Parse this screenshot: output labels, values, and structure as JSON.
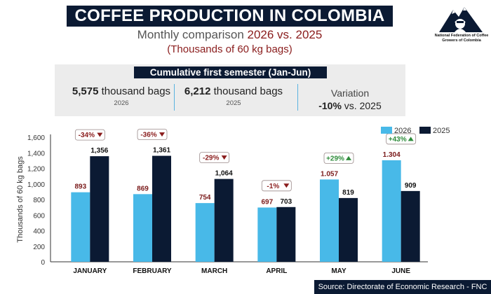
{
  "header": {
    "title": "COFFEE PRODUCTION IN COLOMBIA",
    "subtitle_prefix": "Monthly comparison ",
    "subtitle_highlight": "2026 vs. 2025",
    "subtitle2": "(Thousands of 60 kg bags)"
  },
  "logo": {
    "text": "National Federation of Coffee Growers of Colombia"
  },
  "summary": {
    "title": "Cumulative first semester (Jan-Jun)",
    "stat_2026_value": "5,575",
    "stat_2026_unit": " thousand bags",
    "stat_2026_year": "2026",
    "stat_2025_value": "6,212",
    "stat_2025_unit": " thousand bags",
    "stat_2025_year": "2025",
    "variation_label": "Variation",
    "variation_value": "-10%",
    "variation_suffix": " vs. 2025"
  },
  "source": "Source: Directorate of Economic Research - FNC",
  "colors": {
    "series_2026": "#48b9e8",
    "series_2025": "#0b1a33",
    "negative": "#8a1c1c",
    "positive": "#2e8b3a"
  },
  "chart_data": {
    "type": "bar",
    "ylabel": "Thousands of 60 kg bags",
    "ylim": [
      0,
      1600
    ],
    "yticks": [
      0,
      200,
      400,
      600,
      800,
      1000,
      1200,
      1400,
      1600
    ],
    "ytick_labels": [
      "0",
      "200",
      "400",
      "600",
      "800",
      "1,000",
      "1,200",
      "1,400",
      "1,600"
    ],
    "grid": false,
    "legend_position": "top-right",
    "categories": [
      "JANUARY",
      "FEBRUARY",
      "MARCH",
      "APRIL",
      "MAY",
      "JUNE"
    ],
    "series": [
      {
        "name": "2026",
        "values": [
          893,
          869,
          754,
          697,
          1057,
          1304
        ],
        "labels": [
          "893",
          "869",
          "754",
          "697",
          "1.057",
          "1.304"
        ]
      },
      {
        "name": "2025",
        "values": [
          1356,
          1361,
          1064,
          703,
          819,
          909
        ],
        "labels": [
          "1,356",
          "1,361",
          "1,064",
          "703",
          "819",
          "909"
        ]
      }
    ],
    "variations": [
      "-34%",
      "-36%",
      "-29%",
      "-1%",
      "+29%",
      "+43%"
    ]
  }
}
